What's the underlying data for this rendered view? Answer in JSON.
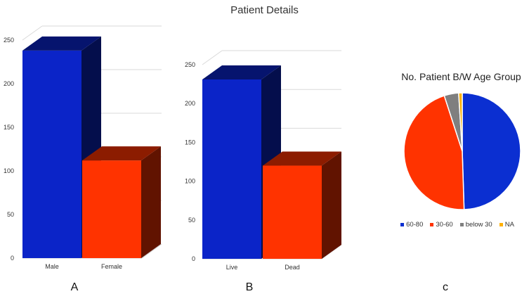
{
  "figure": {
    "title": "Patient Details",
    "panel_labels": [
      "A",
      "B",
      "c"
    ]
  },
  "chart_data": [
    {
      "type": "bar",
      "panel": "A",
      "title": "",
      "categories": [
        "Male",
        "Female"
      ],
      "values": [
        238,
        112
      ],
      "colors": [
        "#0b24c8",
        "#ff3300"
      ],
      "ylim": [
        0,
        250
      ],
      "yticks": [
        0,
        50,
        100,
        150,
        200,
        250
      ],
      "xlabel": "",
      "ylabel": "",
      "grid": true
    },
    {
      "type": "bar",
      "panel": "B",
      "title": "",
      "categories": [
        "Live",
        "Dead"
      ],
      "values": [
        231,
        120
      ],
      "colors": [
        "#0b24c8",
        "#ff3300"
      ],
      "ylim": [
        0,
        250
      ],
      "yticks": [
        0,
        50,
        100,
        150,
        200,
        250
      ],
      "xlabel": "",
      "ylabel": "",
      "grid": true
    },
    {
      "type": "pie",
      "panel": "c",
      "title": "No. Patient B/W Age Group",
      "labels": [
        "60-80",
        "30-60",
        "below 30",
        "NA"
      ],
      "values": [
        49.5,
        45.5,
        4,
        1
      ],
      "colors": [
        "#0b2fd1",
        "#ff3300",
        "#7f7f7f",
        "#ffb000"
      ],
      "legend_position": "bottom"
    }
  ]
}
